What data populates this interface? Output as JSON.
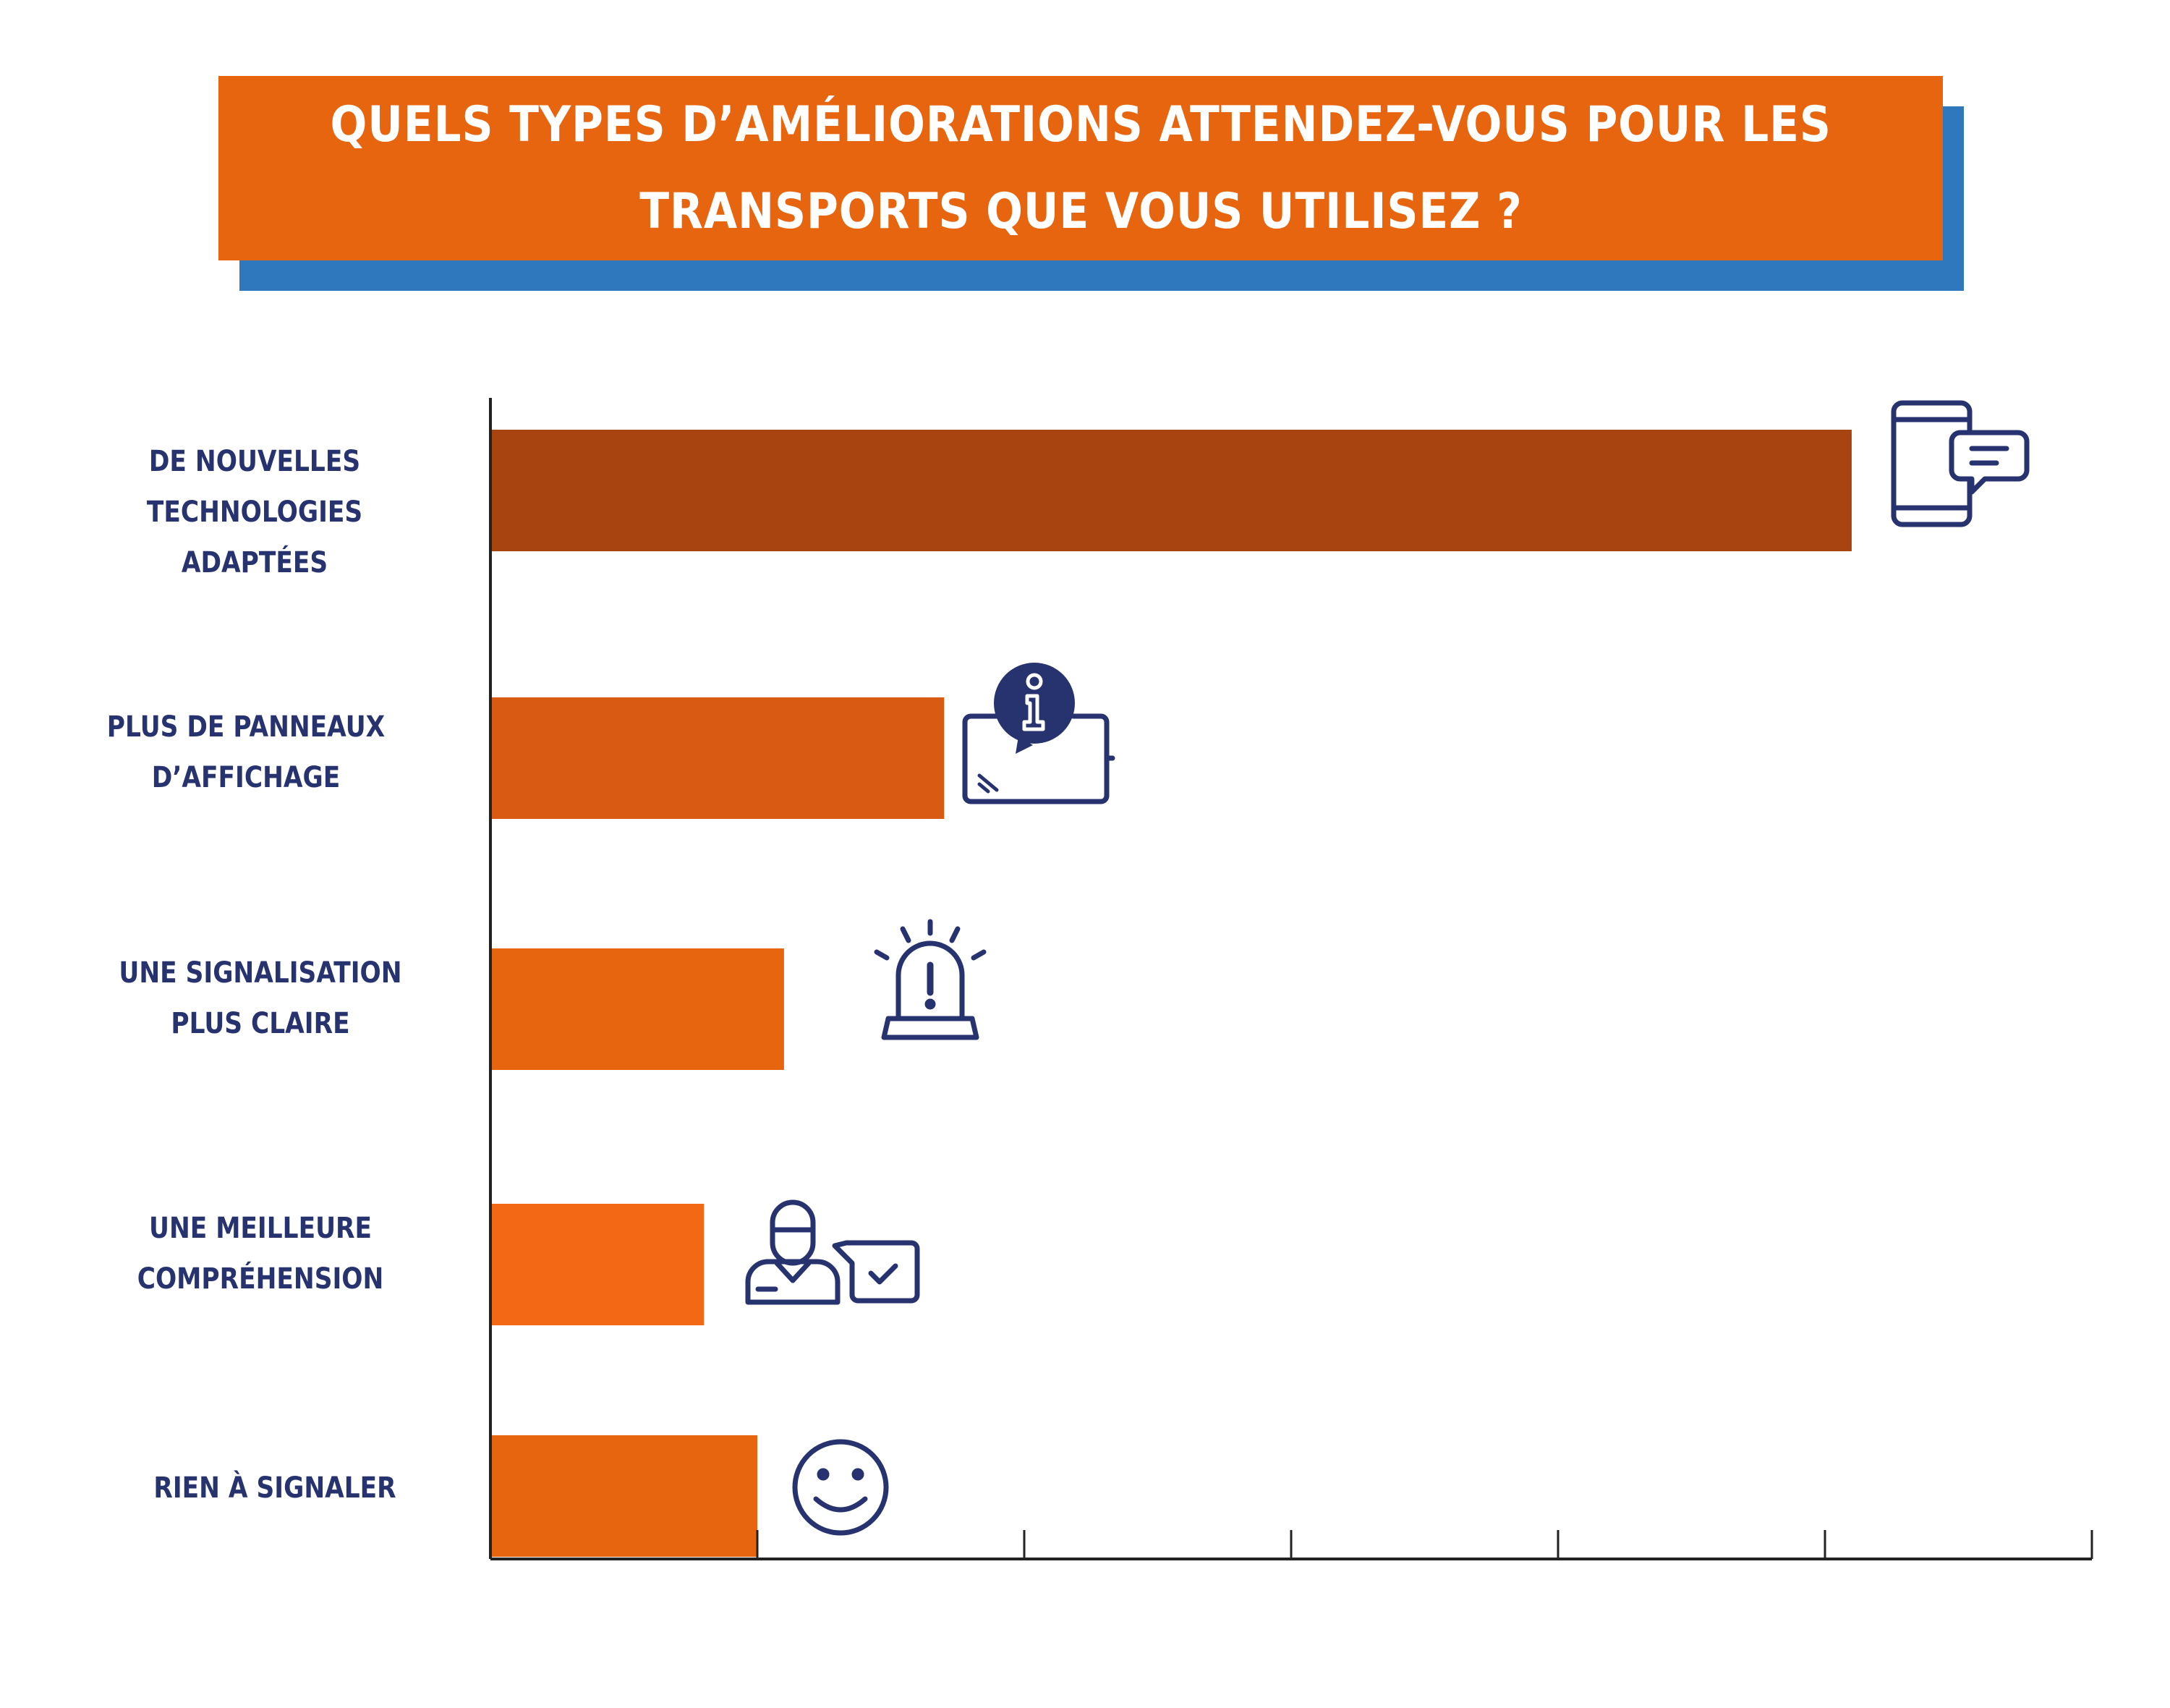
{
  "title": {
    "line1": "QUELS TYPES D’AMÉLIORATIONS ATTENDEZ-VOUS POUR LES",
    "line2": "TRANSPORTS QUE VOUS UTILISEZ ?"
  },
  "chart_data": {
    "type": "bar",
    "orientation": "horizontal",
    "categories": [
      [
        "DE NOUVELLES",
        "TECHNOLOGIES ADAPTÉES"
      ],
      [
        "PLUS DE PANNEAUX",
        "D’AFFICHAGE"
      ],
      [
        "UNE SIGNALISATION",
        "PLUS CLAIRE"
      ],
      [
        "UNE MEILLEURE",
        "COMPRÉHENSION"
      ],
      [
        "RIEN À SIGNALER"
      ]
    ],
    "values": [
      51,
      17,
      11,
      8,
      10
    ],
    "xlim": [
      0,
      60
    ],
    "bar_colors": [
      "#a8440f",
      "#d95a12",
      "#e8650f",
      "#f26815",
      "#e8650f"
    ],
    "icons": [
      "smartphone-chat-icon",
      "info-display-icon",
      "alarm-light-icon",
      "person-chat-icon",
      "smiley-icon"
    ],
    "grid": false,
    "legend": "none"
  }
}
